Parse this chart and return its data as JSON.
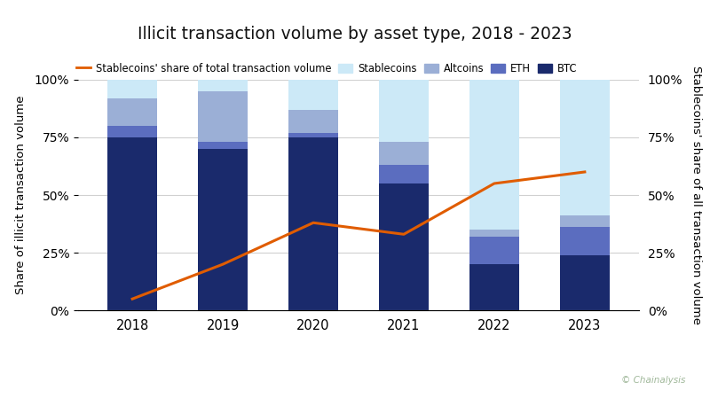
{
  "years": [
    2018,
    2019,
    2020,
    2021,
    2022,
    2023
  ],
  "btc": [
    0.75,
    0.7,
    0.75,
    0.55,
    0.2,
    0.24
  ],
  "eth": [
    0.05,
    0.03,
    0.02,
    0.08,
    0.12,
    0.12
  ],
  "altcoins": [
    0.12,
    0.22,
    0.1,
    0.1,
    0.03,
    0.05
  ],
  "stablecoins": [
    0.08,
    0.05,
    0.13,
    0.27,
    0.65,
    0.59
  ],
  "line_values": [
    0.05,
    0.2,
    0.38,
    0.33,
    0.55,
    0.6
  ],
  "color_btc": "#1a2a6c",
  "color_eth": "#5b6dbf",
  "color_altcoins": "#9bafd6",
  "color_stablecoins": "#cce9f7",
  "color_line": "#e05c00",
  "title": "Illicit transaction volume by asset type, 2018 - 2023",
  "ylabel_left": "Share of illicit transaction volume",
  "ylabel_right": "Stablecoins' share of all transaction volume",
  "background_color": "#ffffff",
  "bar_width": 0.55,
  "footer_color": "#4a6741",
  "watermark_text": "© Chainalysis",
  "watermark_color": "#a0b89a"
}
